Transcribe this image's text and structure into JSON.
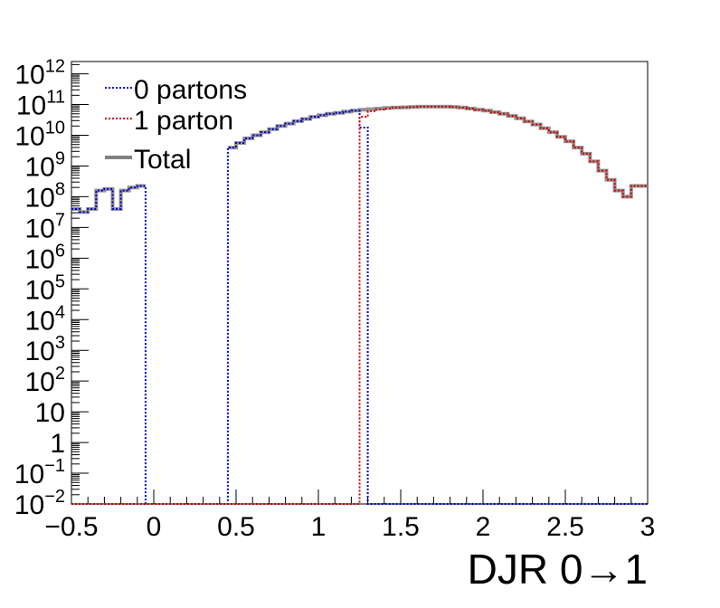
{
  "chart_data": {
    "type": "step",
    "xlabel": "DJR 0→1",
    "ylabel": "",
    "xlim": [
      -0.5,
      3.0
    ],
    "ylim_log10": [
      -2,
      12.4
    ],
    "yscale": "log",
    "bin_width": 0.05,
    "grid": false,
    "legend_position": "top-left",
    "x_ticks": [
      {
        "value": -0.5,
        "label": "−0.5"
      },
      {
        "value": 0,
        "label": "0"
      },
      {
        "value": 0.5,
        "label": "0.5"
      },
      {
        "value": 1,
        "label": "1"
      },
      {
        "value": 1.5,
        "label": "1.5"
      },
      {
        "value": 2,
        "label": "2"
      },
      {
        "value": 2.5,
        "label": "2.5"
      },
      {
        "value": 3,
        "label": "3"
      }
    ],
    "y_ticks": [
      {
        "exp": -2,
        "base": "10",
        "sup": "−2"
      },
      {
        "exp": -1,
        "base": "10",
        "sup": "−1"
      },
      {
        "exp": 0,
        "base": "1",
        "sup": ""
      },
      {
        "exp": 1,
        "base": "10",
        "sup": ""
      },
      {
        "exp": 2,
        "base": "10",
        "sup": "2"
      },
      {
        "exp": 3,
        "base": "10",
        "sup": "3"
      },
      {
        "exp": 4,
        "base": "10",
        "sup": "4"
      },
      {
        "exp": 5,
        "base": "10",
        "sup": "5"
      },
      {
        "exp": 6,
        "base": "10",
        "sup": "6"
      },
      {
        "exp": 7,
        "base": "10",
        "sup": "7"
      },
      {
        "exp": 8,
        "base": "10",
        "sup": "8"
      },
      {
        "exp": 9,
        "base": "10",
        "sup": "9"
      },
      {
        "exp": 10,
        "base": "10",
        "sup": "10"
      },
      {
        "exp": 11,
        "base": "10",
        "sup": "11"
      },
      {
        "exp": 12,
        "base": "10",
        "sup": "12"
      }
    ],
    "series": [
      {
        "name": "0 partons",
        "color": "#0000cc",
        "style": "dotted",
        "x": [
          -0.5,
          -0.45,
          -0.4,
          -0.35,
          -0.3,
          -0.25,
          -0.2,
          -0.15,
          -0.1,
          -0.05,
          0,
          0.05,
          0.1,
          0.15,
          0.2,
          0.25,
          0.3,
          0.35,
          0.4,
          0.45,
          0.5,
          0.55,
          0.6,
          0.65,
          0.7,
          0.75,
          0.8,
          0.85,
          0.9,
          0.95,
          1,
          1.05,
          1.1,
          1.15,
          1.2,
          1.25,
          1.3,
          1.35,
          1.4,
          1.45,
          1.5,
          1.55,
          1.6,
          1.65,
          1.7,
          1.75,
          1.8,
          1.85,
          1.9,
          1.95,
          2,
          2.05,
          2.1,
          2.15,
          2.2,
          2.25,
          2.3,
          2.35,
          2.4,
          2.45,
          2.5,
          2.55,
          2.6,
          2.65,
          2.7,
          2.75,
          2.8,
          2.85,
          2.9,
          2.95
        ],
        "log10_y": [
          7.6,
          7.5,
          7.6,
          8.2,
          8.25,
          7.6,
          8.2,
          8.3,
          8.35,
          -2,
          -2,
          -2,
          -2,
          -2,
          -2,
          -2,
          -2,
          -2,
          -2,
          9.6,
          9.75,
          9.9,
          10.0,
          10.1,
          10.2,
          10.3,
          10.38,
          10.46,
          10.53,
          10.6,
          10.65,
          10.7,
          10.73,
          10.77,
          10.8,
          10.25,
          -2,
          -2,
          -2,
          -2,
          -2,
          -2,
          -2,
          -2,
          -2,
          -2,
          -2,
          -2,
          -2,
          -2,
          -2,
          -2,
          -2,
          -2,
          -2,
          -2,
          -2,
          -2,
          -2,
          -2,
          -2,
          -2,
          -2,
          -2,
          -2,
          -2,
          -2,
          -2,
          -2,
          -2
        ]
      },
      {
        "name": "1 parton",
        "color": "#cc0000",
        "style": "dotted",
        "x": [
          -0.5,
          -0.45,
          -0.4,
          -0.35,
          -0.3,
          -0.25,
          -0.2,
          -0.15,
          -0.1,
          -0.05,
          0,
          0.05,
          0.1,
          0.15,
          0.2,
          0.25,
          0.3,
          0.35,
          0.4,
          0.45,
          0.5,
          0.55,
          0.6,
          0.65,
          0.7,
          0.75,
          0.8,
          0.85,
          0.9,
          0.95,
          1,
          1.05,
          1.1,
          1.15,
          1.2,
          1.25,
          1.3,
          1.35,
          1.4,
          1.45,
          1.5,
          1.55,
          1.6,
          1.65,
          1.7,
          1.75,
          1.8,
          1.85,
          1.9,
          1.95,
          2,
          2.05,
          2.1,
          2.15,
          2.2,
          2.25,
          2.3,
          2.35,
          2.4,
          2.45,
          2.5,
          2.55,
          2.6,
          2.65,
          2.7,
          2.75,
          2.8,
          2.85,
          2.9,
          2.95
        ],
        "log10_y": [
          -2,
          -2,
          -2,
          -2,
          -2,
          -2,
          -2,
          -2,
          -2,
          -2,
          -2,
          -2,
          -2,
          -2,
          -2,
          -2,
          -2,
          -2,
          -2,
          -2,
          -2,
          -2,
          -2,
          -2,
          -2,
          -2,
          -2,
          -2,
          -2,
          -2,
          -2,
          -2,
          -2,
          -2,
          -2,
          10.6,
          10.78,
          10.84,
          10.87,
          10.9,
          10.91,
          10.92,
          10.93,
          10.93,
          10.93,
          10.93,
          10.92,
          10.9,
          10.87,
          10.83,
          10.8,
          10.75,
          10.7,
          10.63,
          10.55,
          10.45,
          10.35,
          10.23,
          10.1,
          9.95,
          9.8,
          9.6,
          9.4,
          9.15,
          8.85,
          8.55,
          8.2,
          8.0,
          8.35,
          8.35
        ]
      },
      {
        "name": "Total",
        "color": "#808080",
        "style": "solid",
        "x": [
          -0.5,
          -0.45,
          -0.4,
          -0.35,
          -0.3,
          -0.25,
          -0.2,
          -0.15,
          -0.1,
          -0.05,
          0,
          0.05,
          0.1,
          0.15,
          0.2,
          0.25,
          0.3,
          0.35,
          0.4,
          0.45,
          0.5,
          0.55,
          0.6,
          0.65,
          0.7,
          0.75,
          0.8,
          0.85,
          0.9,
          0.95,
          1,
          1.05,
          1.1,
          1.15,
          1.2,
          1.25,
          1.3,
          1.35,
          1.4,
          1.45,
          1.5,
          1.55,
          1.6,
          1.65,
          1.7,
          1.75,
          1.8,
          1.85,
          1.9,
          1.95,
          2,
          2.05,
          2.1,
          2.15,
          2.2,
          2.25,
          2.3,
          2.35,
          2.4,
          2.45,
          2.5,
          2.55,
          2.6,
          2.65,
          2.7,
          2.75,
          2.8,
          2.85,
          2.9,
          2.95
        ],
        "log10_y": [
          7.6,
          7.5,
          7.6,
          8.2,
          8.25,
          7.6,
          8.2,
          8.3,
          8.35,
          null,
          null,
          null,
          null,
          null,
          null,
          null,
          null,
          null,
          null,
          9.6,
          9.75,
          9.9,
          10.0,
          10.1,
          10.2,
          10.3,
          10.38,
          10.46,
          10.53,
          10.6,
          10.65,
          10.7,
          10.73,
          10.77,
          10.8,
          10.83,
          10.85,
          10.87,
          10.89,
          10.9,
          10.91,
          10.92,
          10.93,
          10.93,
          10.93,
          10.93,
          10.92,
          10.9,
          10.87,
          10.83,
          10.8,
          10.75,
          10.7,
          10.63,
          10.55,
          10.45,
          10.35,
          10.23,
          10.1,
          9.95,
          9.8,
          9.6,
          9.4,
          9.15,
          8.85,
          8.55,
          8.2,
          8.0,
          8.35,
          8.35
        ]
      }
    ]
  },
  "colors": {
    "frame": "#000000",
    "background": "#ffffff"
  }
}
